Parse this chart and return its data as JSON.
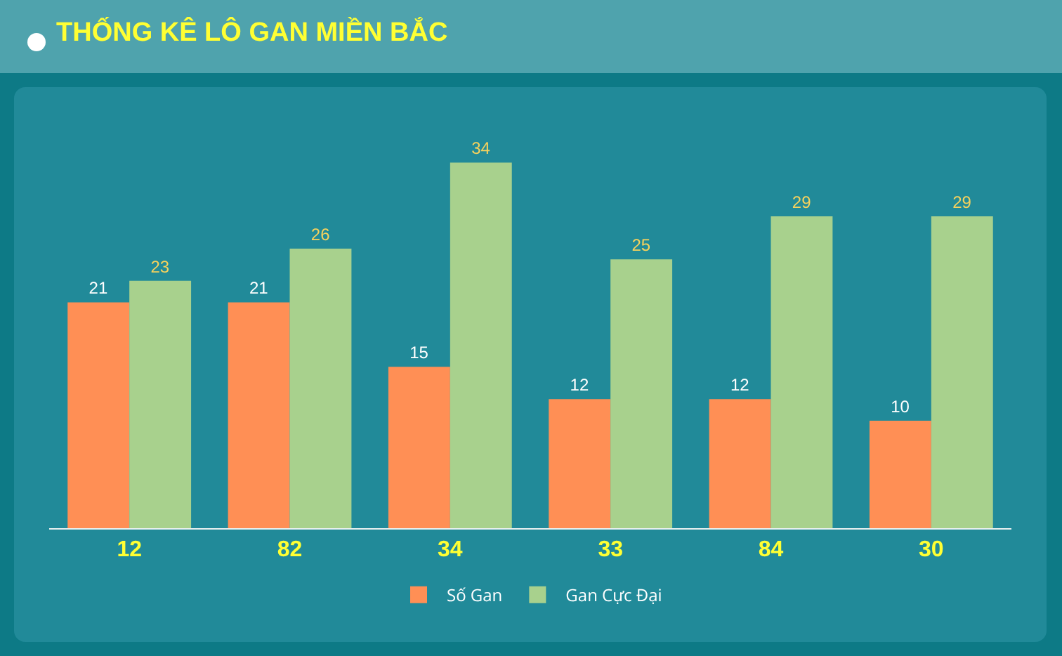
{
  "chart_data": {
    "type": "bar",
    "title": "THỐNG KÊ LÔ GAN MIỀN BẮC",
    "categories": [
      "12",
      "82",
      "34",
      "33",
      "84",
      "30"
    ],
    "series": [
      {
        "name": "Số Gan",
        "color": "#ff8f55",
        "values": [
          21,
          21,
          15,
          12,
          12,
          10
        ]
      },
      {
        "name": "Gan Cực Đại",
        "color": "#a8d18d",
        "values": [
          23,
          26,
          34,
          25,
          29,
          29
        ]
      }
    ],
    "data_labels": true,
    "legend": "bottom",
    "grid": false,
    "tick_labels": "x"
  }
}
